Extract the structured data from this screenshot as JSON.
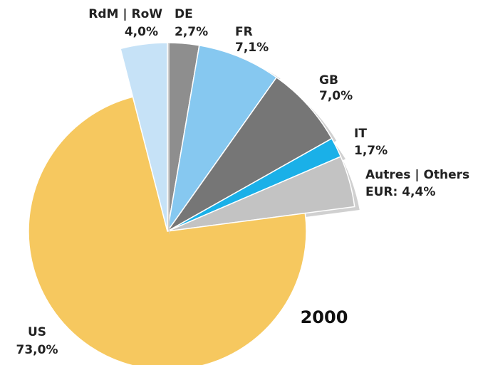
{
  "chart_data": {
    "type": "pie",
    "title": "2000",
    "categories": [
      "DE",
      "FR",
      "GB",
      "IT",
      "Autres | Others",
      "US",
      "RdM | RoW"
    ],
    "values": [
      2.7,
      7.1,
      7.0,
      1.7,
      4.4,
      73.0,
      4.0
    ],
    "value_labels": [
      "2,7%",
      "7,1%",
      "7,0%",
      "1,7%",
      "EUR: 4,4%",
      "73,0%",
      "4,0%"
    ],
    "colors": [
      "#8e8e8e",
      "#86c8f0",
      "#767676",
      "#1ab0e8",
      "#c3c3c3",
      "#f6c85f",
      "#c6e2f7"
    ]
  }
}
